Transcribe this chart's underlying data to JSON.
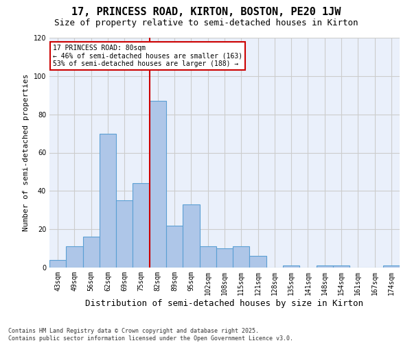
{
  "title": "17, PRINCESS ROAD, KIRTON, BOSTON, PE20 1JW",
  "subtitle": "Size of property relative to semi-detached houses in Kirton",
  "xlabel": "Distribution of semi-detached houses by size in Kirton",
  "ylabel": "Number of semi-detached properties",
  "categories": [
    "43sqm",
    "49sqm",
    "56sqm",
    "62sqm",
    "69sqm",
    "75sqm",
    "82sqm",
    "89sqm",
    "95sqm",
    "102sqm",
    "108sqm",
    "115sqm",
    "121sqm",
    "128sqm",
    "135sqm",
    "141sqm",
    "148sqm",
    "154sqm",
    "161sqm",
    "167sqm",
    "174sqm"
  ],
  "values": [
    4,
    11,
    16,
    70,
    35,
    44,
    87,
    22,
    33,
    11,
    10,
    11,
    6,
    0,
    1,
    0,
    1,
    1,
    0,
    0,
    1
  ],
  "bar_color": "#aec6e8",
  "bar_edgecolor": "#5a9fd4",
  "property_line_index": 6,
  "annotation_title": "17 PRINCESS ROAD: 80sqm",
  "annotation_line1": "← 46% of semi-detached houses are smaller (163)",
  "annotation_line2": "53% of semi-detached houses are larger (188) →",
  "annotation_box_color": "#ffffff",
  "annotation_box_edgecolor": "#cc0000",
  "vline_color": "#cc0000",
  "ylim": [
    0,
    120
  ],
  "yticks": [
    0,
    20,
    40,
    60,
    80,
    100,
    120
  ],
  "grid_color": "#cccccc",
  "bg_color": "#eaf0fb",
  "footnote": "Contains HM Land Registry data © Crown copyright and database right 2025.\nContains public sector information licensed under the Open Government Licence v3.0.",
  "title_fontsize": 11,
  "subtitle_fontsize": 9,
  "xlabel_fontsize": 9,
  "ylabel_fontsize": 8,
  "tick_fontsize": 7,
  "footnote_fontsize": 6,
  "annot_fontsize": 7
}
